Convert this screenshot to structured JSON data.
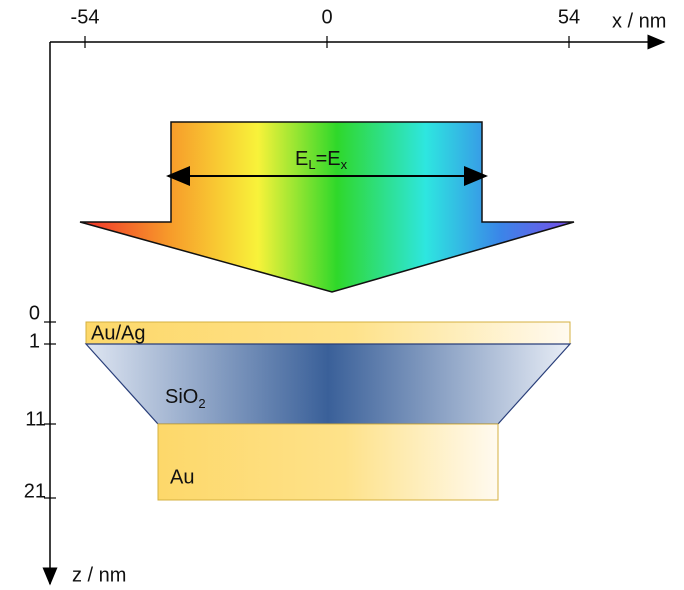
{
  "x_axis": {
    "label": "x / nm",
    "ticks": [
      "-54",
      "0",
      "54"
    ]
  },
  "z_axis": {
    "label": "z / nm",
    "ticks": [
      "0",
      "1",
      "11",
      "21"
    ]
  },
  "field": {
    "symbol": "E",
    "symbol_sub": "L",
    "equals": "=E",
    "equals_sub": "x"
  },
  "layers": [
    {
      "label": "Au/Ag"
    },
    {
      "label": "SiO",
      "label_sub": "2"
    },
    {
      "label": "Au"
    }
  ]
}
